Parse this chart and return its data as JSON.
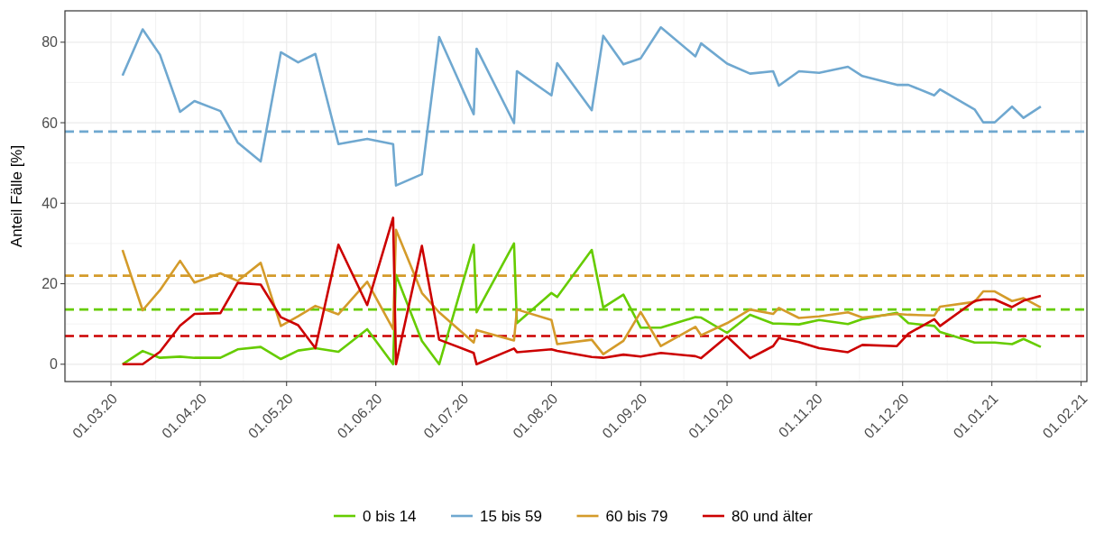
{
  "chart_data": {
    "type": "line",
    "ylabel": "Anteil Fälle [%]",
    "x": [
      "2020-03-05",
      "2020-03-12",
      "2020-03-18",
      "2020-03-25",
      "2020-03-30",
      "2020-04-08",
      "2020-04-14",
      "2020-04-22",
      "2020-04-29",
      "2020-05-05",
      "2020-05-11",
      "2020-05-19",
      "2020-05-29",
      "2020-06-07",
      "2020-06-08",
      "2020-06-17",
      "2020-06-23",
      "2020-07-05",
      "2020-07-06",
      "2020-07-19",
      "2020-07-20",
      "2020-08-01",
      "2020-08-03",
      "2020-08-15",
      "2020-08-19",
      "2020-08-26",
      "2020-09-01",
      "2020-09-08",
      "2020-09-20",
      "2020-09-22",
      "2020-10-01",
      "2020-10-09",
      "2020-10-17",
      "2020-10-19",
      "2020-10-26",
      "2020-11-02",
      "2020-11-12",
      "2020-11-17",
      "2020-11-29",
      "2020-12-03",
      "2020-12-12",
      "2020-12-14",
      "2020-12-26",
      "2020-12-29",
      "2021-01-02",
      "2021-01-08",
      "2021-01-12",
      "2021-01-18"
    ],
    "series": [
      {
        "name": "0 bis 14",
        "color": "#66cc00",
        "values": [
          0,
          3.3,
          1.6,
          1.9,
          1.6,
          1.6,
          3.7,
          4.3,
          1.3,
          3.4,
          4.0,
          3.1,
          8.7,
          0,
          22.2,
          5.8,
          0,
          29.7,
          12.9,
          30.0,
          10.2,
          17.7,
          16.7,
          28.4,
          14.1,
          17.3,
          9.1,
          9.1,
          11.7,
          11.6,
          7.8,
          12.3,
          10.1,
          10.1,
          9.9,
          11.0,
          10.0,
          11.2,
          12.8,
          10.2,
          9.5,
          8.0,
          5.4,
          5.4,
          5.4,
          5.0,
          6.3,
          4.3
        ]
      },
      {
        "name": "15 bis 59",
        "color": "#6fa8d0",
        "values": [
          71.7,
          83.2,
          76.9,
          62.7,
          65.4,
          62.9,
          55.1,
          50.4,
          77.5,
          75.0,
          77.1,
          54.7,
          56.0,
          54.7,
          44.4,
          47.2,
          81.3,
          62.1,
          78.4,
          59.9,
          72.8,
          66.8,
          74.8,
          63.1,
          81.6,
          74.5,
          76.0,
          83.7,
          76.5,
          79.7,
          74.7,
          72.2,
          72.8,
          69.2,
          72.8,
          72.4,
          73.9,
          71.6,
          69.4,
          69.4,
          66.8,
          68.3,
          63.3,
          60.1,
          60.1,
          64.0,
          61.2,
          64.0
        ]
      },
      {
        "name": "60 bis 79",
        "color": "#d49b2a",
        "values": [
          28.4,
          13.4,
          18.4,
          25.7,
          20.3,
          22.6,
          20.7,
          25.2,
          9.5,
          11.9,
          14.5,
          12.4,
          20.5,
          8.7,
          33.4,
          17.7,
          12.9,
          5.4,
          8.5,
          5.9,
          13.6,
          11.0,
          5.0,
          6.1,
          2.5,
          5.8,
          13.0,
          4.5,
          9.3,
          7.2,
          10.2,
          13.6,
          12.5,
          14.0,
          11.5,
          11.9,
          12.9,
          11.6,
          12.5,
          12.3,
          12.1,
          14.3,
          15.5,
          18.1,
          18.1,
          15.7,
          16.4,
          14.1
        ]
      },
      {
        "name": "80 und älter",
        "color": "#cc0000",
        "values": [
          0,
          0,
          3.1,
          9.6,
          12.5,
          12.7,
          20.2,
          19.8,
          11.7,
          9.7,
          4.0,
          29.7,
          14.7,
          36.4,
          0,
          29.4,
          6.1,
          2.8,
          0,
          3.9,
          3.0,
          3.7,
          3.3,
          1.8,
          1.6,
          2.4,
          1.9,
          2.8,
          2.0,
          1.5,
          6.9,
          1.5,
          4.5,
          6.5,
          5.5,
          4.0,
          3.0,
          4.8,
          4.5,
          7.6,
          11.2,
          9.5,
          15.7,
          16.1,
          16.1,
          14.2,
          15.8,
          17.0
        ]
      }
    ],
    "ref_lines": [
      {
        "axis": "y",
        "value": 13.6,
        "color": "#66cc00",
        "line_style": "dashed"
      },
      {
        "axis": "y",
        "value": 57.8,
        "color": "#6fa8d0",
        "line_style": "dashed"
      },
      {
        "axis": "y",
        "value": 22.0,
        "color": "#d49b2a",
        "line_style": "dashed"
      },
      {
        "axis": "y",
        "value": 7.0,
        "color": "#cc0000",
        "line_style": "dashed"
      }
    ],
    "xlim": [
      "2020-02-14",
      "2021-02-03"
    ],
    "xticks": [
      {
        "value": "2020-03-01",
        "label": "01.03.20"
      },
      {
        "value": "2020-04-01",
        "label": "01.04.20"
      },
      {
        "value": "2020-05-01",
        "label": "01.05.20"
      },
      {
        "value": "2020-06-01",
        "label": "01.06.20"
      },
      {
        "value": "2020-07-01",
        "label": "01.07.20"
      },
      {
        "value": "2020-08-01",
        "label": "01.08.20"
      },
      {
        "value": "2020-09-01",
        "label": "01.09.20"
      },
      {
        "value": "2020-10-01",
        "label": "01.10.20"
      },
      {
        "value": "2020-11-01",
        "label": "01.11.20"
      },
      {
        "value": "2020-12-01",
        "label": "01.12.20"
      },
      {
        "value": "2021-01-01",
        "label": "01.01.21"
      },
      {
        "value": "2021-02-01",
        "label": "01.02.21"
      }
    ],
    "ylim": [
      -4.3,
      87.8
    ],
    "yticks": [
      0,
      20,
      40,
      60,
      80
    ],
    "grid": true,
    "legend": "bottom",
    "line_style": "solid",
    "marker": "none"
  }
}
